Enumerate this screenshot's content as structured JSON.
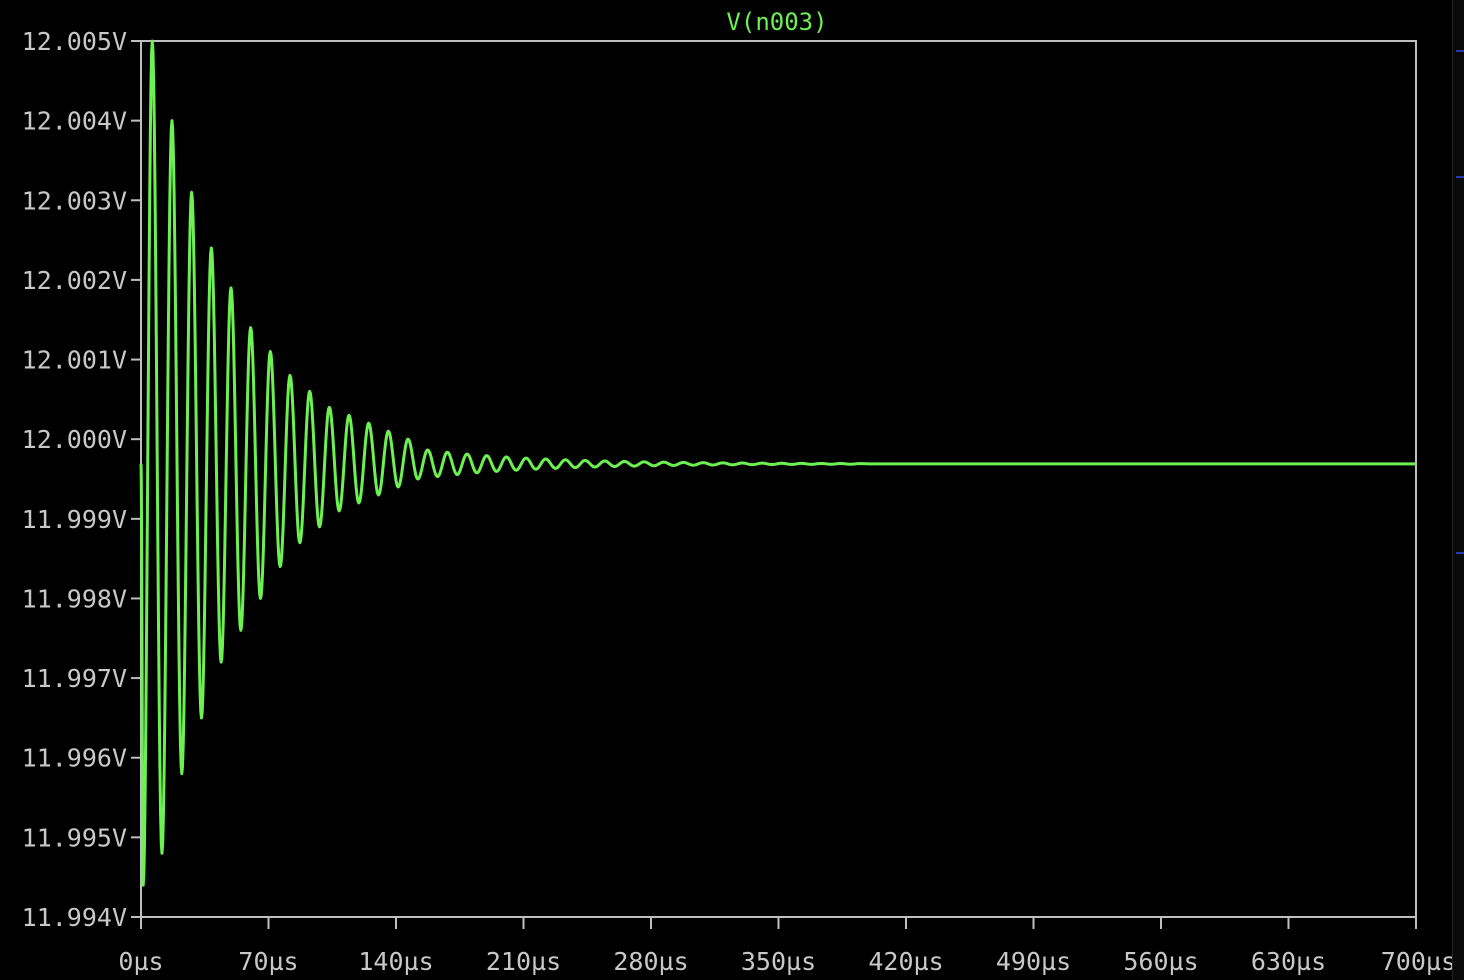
{
  "chart_data": {
    "type": "line",
    "title": "V(n003)",
    "xlabel": "",
    "ylabel": "",
    "x_unit": "µs",
    "y_unit": "V",
    "xlim": [
      0,
      700
    ],
    "ylim": [
      11.994,
      12.005
    ],
    "x_ticks": [
      0,
      70,
      140,
      210,
      280,
      350,
      420,
      490,
      560,
      630,
      700
    ],
    "x_tick_labels": [
      "0µs",
      "70µs",
      "140µs",
      "210µs",
      "280µs",
      "350µs",
      "420µs",
      "490µs",
      "560µs",
      "630µs",
      "700µs"
    ],
    "y_ticks": [
      12.005,
      12.004,
      12.003,
      12.002,
      12.001,
      12.0,
      11.999,
      11.998,
      11.997,
      11.996,
      11.995,
      11.994
    ],
    "y_tick_labels": [
      "12.005V",
      "12.004V",
      "12.003V",
      "12.002V",
      "12.001V",
      "12.000V",
      "11.999V",
      "11.998V",
      "11.997V",
      "11.996V",
      "11.995V",
      "11.994V"
    ],
    "grid": false,
    "series": [
      {
        "name": "V(n003)",
        "color": "#6df052",
        "steady_value": 11.99969,
        "oscillation_period_us": 10.8,
        "peaks": [
          {
            "t": 1.2,
            "v": 11.9944
          },
          {
            "t": 6.2,
            "v": 12.005
          },
          {
            "t": 11.5,
            "v": 11.9948
          },
          {
            "t": 17.0,
            "v": 12.004
          },
          {
            "t": 22.4,
            "v": 11.9958
          },
          {
            "t": 27.8,
            "v": 12.0031
          },
          {
            "t": 33.2,
            "v": 11.9965
          },
          {
            "t": 38.6,
            "v": 12.0024
          },
          {
            "t": 44.0,
            "v": 11.9972
          },
          {
            "t": 49.4,
            "v": 12.0019
          },
          {
            "t": 54.8,
            "v": 11.9976
          },
          {
            "t": 60.2,
            "v": 12.0014
          },
          {
            "t": 65.6,
            "v": 11.998
          },
          {
            "t": 71.0,
            "v": 12.0011
          },
          {
            "t": 76.4,
            "v": 11.9984
          },
          {
            "t": 81.8,
            "v": 12.0008
          },
          {
            "t": 87.2,
            "v": 11.9987
          },
          {
            "t": 92.6,
            "v": 12.0006
          },
          {
            "t": 98.0,
            "v": 11.9989
          },
          {
            "t": 103.4,
            "v": 12.0004
          },
          {
            "t": 108.8,
            "v": 11.9991
          },
          {
            "t": 114.2,
            "v": 12.0003
          },
          {
            "t": 119.6,
            "v": 11.9992
          },
          {
            "t": 125.0,
            "v": 12.0002
          },
          {
            "t": 130.4,
            "v": 11.9993
          },
          {
            "t": 135.8,
            "v": 12.0001
          },
          {
            "t": 141.2,
            "v": 11.9994
          },
          {
            "t": 146.6,
            "v": 12.0
          },
          {
            "t": 152.0,
            "v": 11.9995
          }
        ],
        "decay_tau_us": 62,
        "values_note_end_us": 390
      }
    ]
  }
}
